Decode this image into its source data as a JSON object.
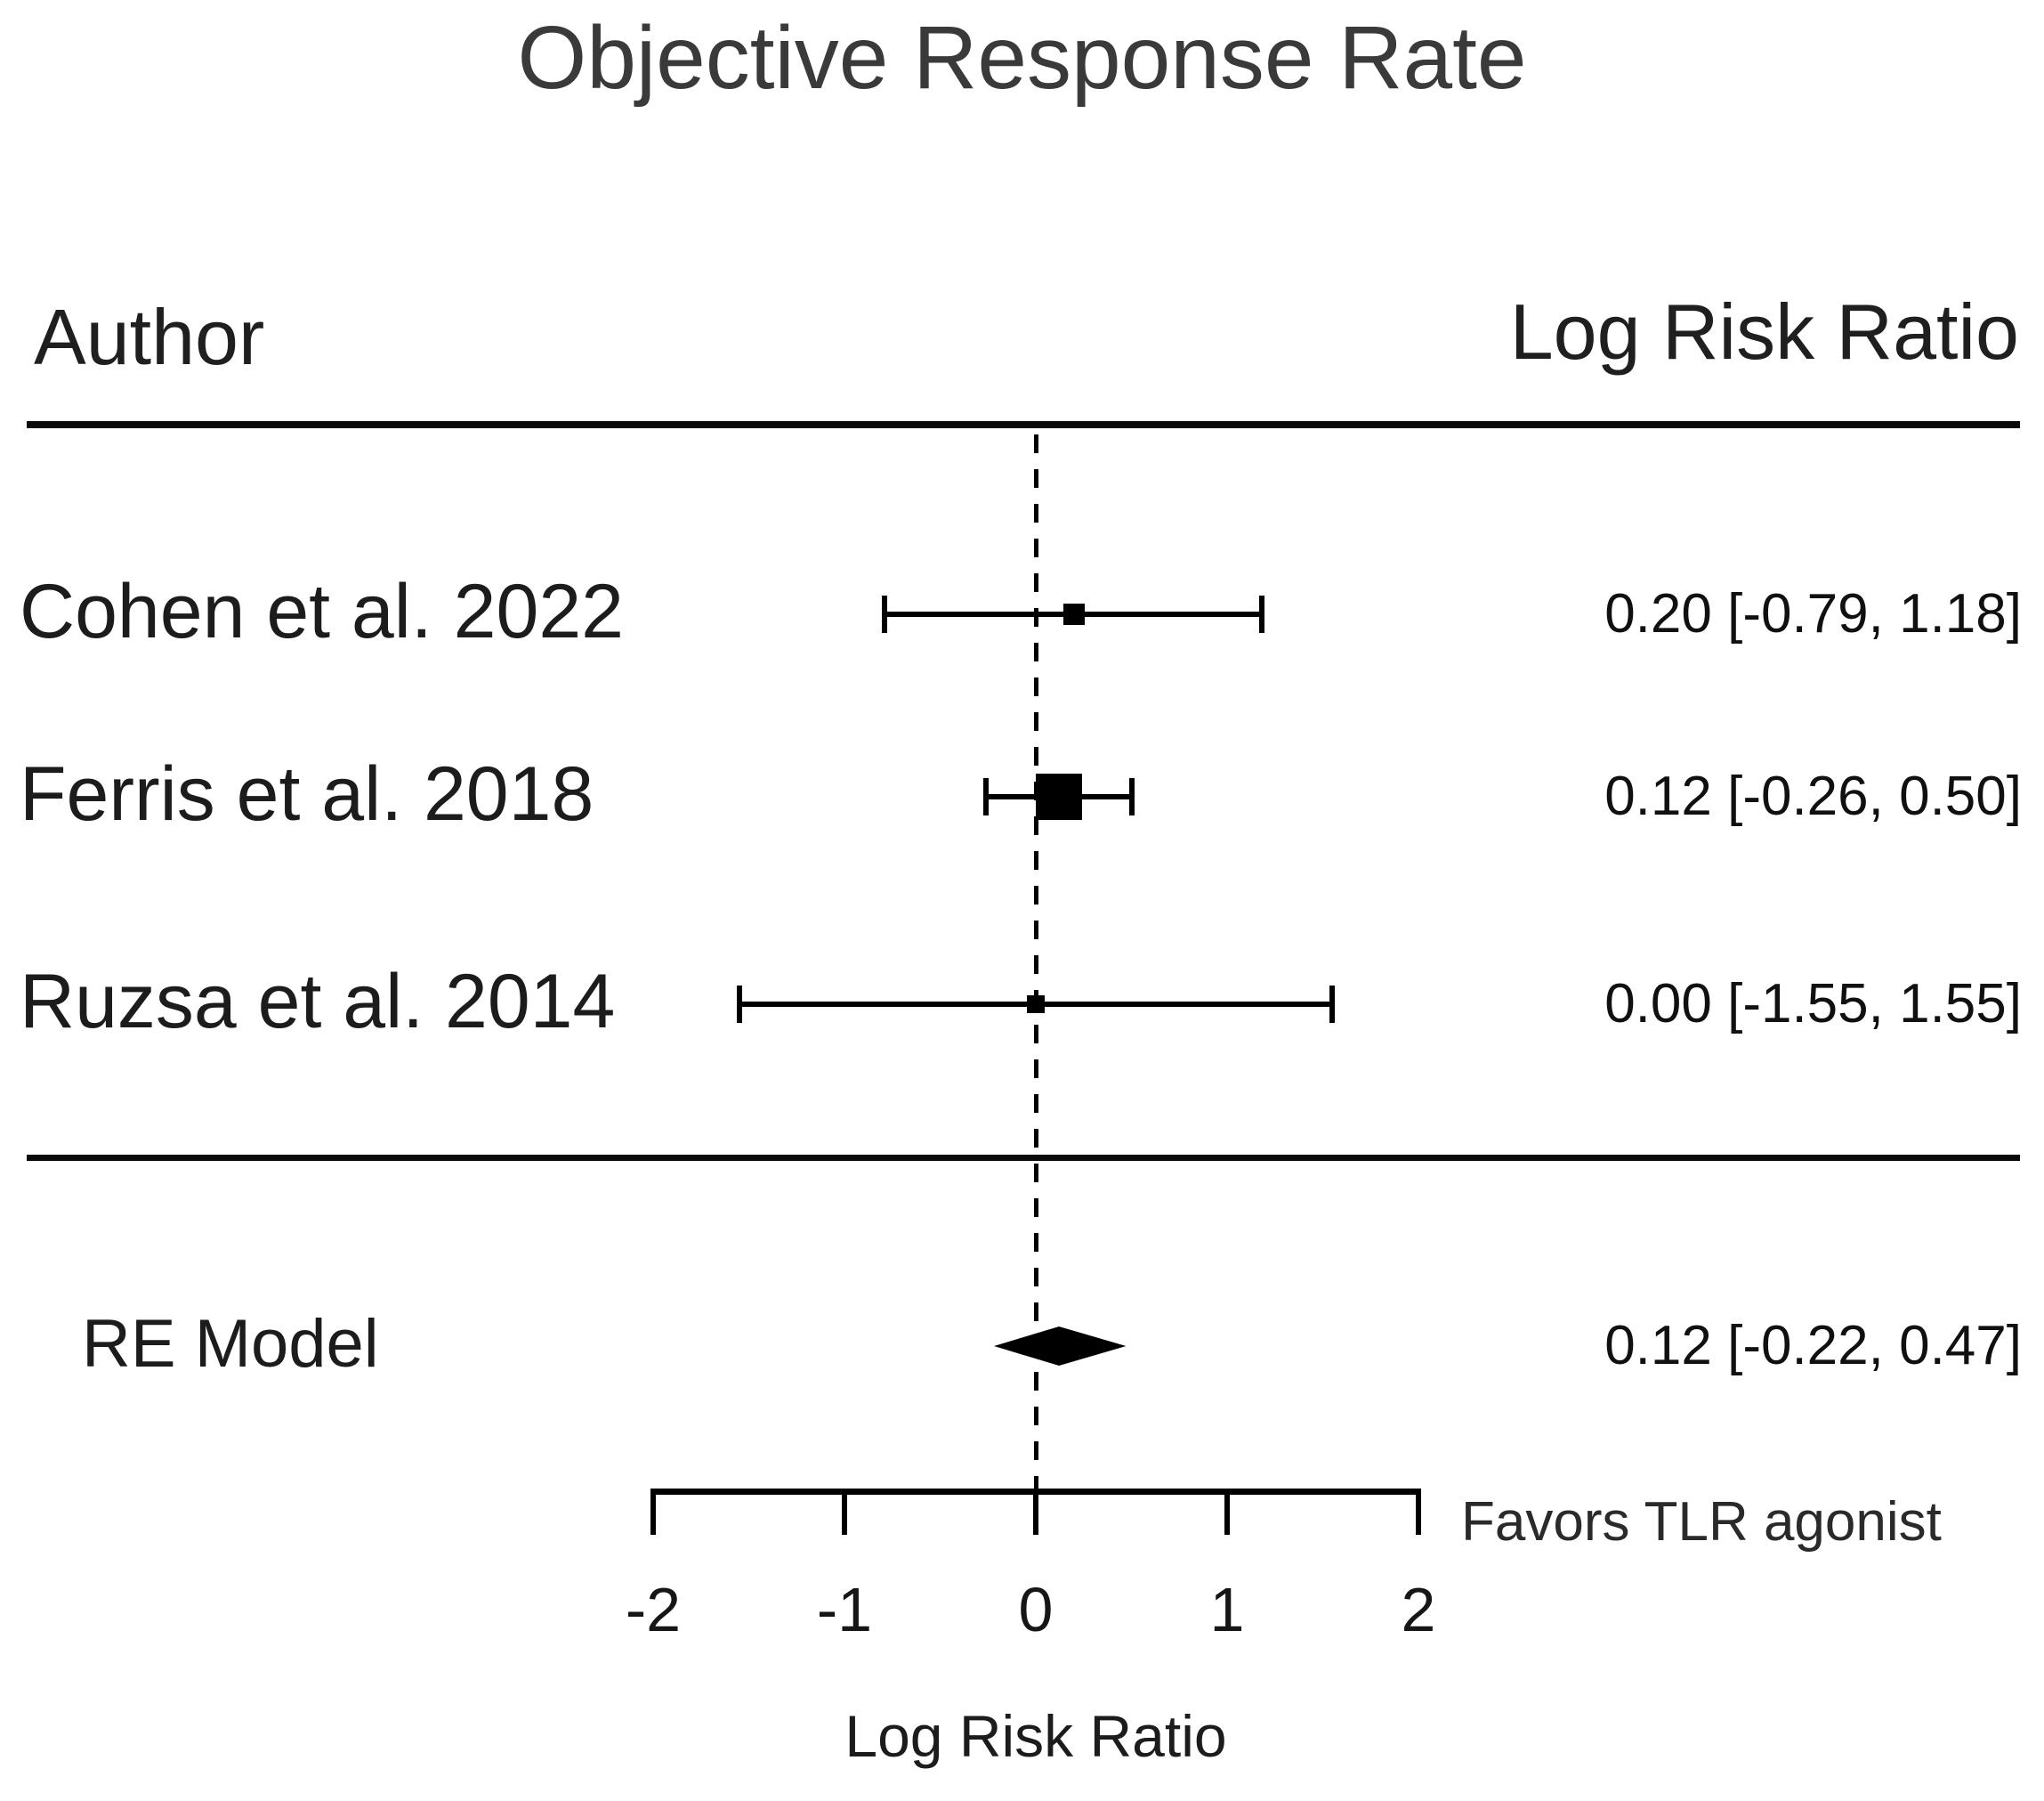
{
  "title": "Objective Response Rate",
  "columns": {
    "author": "Author",
    "effect": "Log Risk Ratio"
  },
  "chart_data": {
    "type": "forest",
    "title": "Objective Response Rate",
    "xlabel": "Log Risk Ratio",
    "x_ticks": [
      "-2",
      "-1",
      "0",
      "1",
      "2"
    ],
    "x_tick_values": [
      -2,
      -1,
      0,
      1,
      2
    ],
    "x_range": [
      -2,
      2
    ],
    "reference_line": 0,
    "favors_label": "Favors TLR agonist",
    "effect_measure": "Log Risk Ratio",
    "studies": [
      {
        "author": "Cohen et al. 2022",
        "estimate": 0.2,
        "ci_lower": -0.79,
        "ci_upper": 1.18,
        "label": "0.20 [-0.79, 1.18]",
        "marker_size_px": 24
      },
      {
        "author": "Ferris et al. 2018",
        "estimate": 0.12,
        "ci_lower": -0.26,
        "ci_upper": 0.5,
        "label": "0.12 [-0.26, 0.50]",
        "marker_size_px": 52
      },
      {
        "author": "Ruzsa et al. 2014",
        "estimate": 0.0,
        "ci_lower": -1.55,
        "ci_upper": 1.55,
        "label": "0.00 [-1.55, 1.55]",
        "marker_size_px": 20
      }
    ],
    "summary": {
      "author": "RE Model",
      "estimate": 0.12,
      "ci_lower": -0.22,
      "ci_upper": 0.47,
      "label": "0.12 [-0.22, 0.47]"
    }
  },
  "colors": {
    "marker": "#000000",
    "text": "#1c1c1c",
    "title": "#3a3a3a"
  }
}
